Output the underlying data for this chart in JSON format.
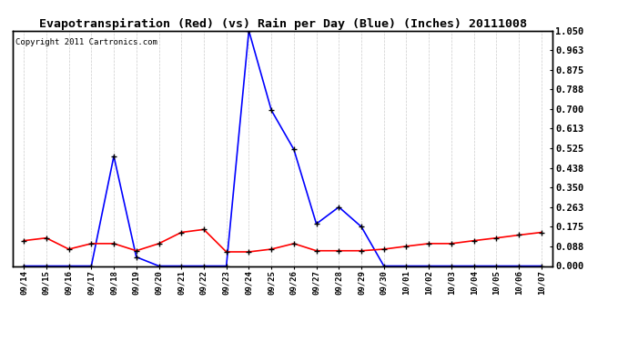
{
  "title": "Evapotranspiration (Red) (vs) Rain per Day (Blue) (Inches) 20111008",
  "copyright": "Copyright 2011 Cartronics.com",
  "dates": [
    "09/14",
    "09/15",
    "09/16",
    "09/17",
    "09/18",
    "09/19",
    "09/20",
    "09/21",
    "09/22",
    "09/23",
    "09/24",
    "09/25",
    "09/26",
    "09/27",
    "09/28",
    "09/29",
    "09/30",
    "10/01",
    "10/02",
    "10/03",
    "10/04",
    "10/05",
    "10/06",
    "10/07"
  ],
  "blue_rain": [
    0.0,
    0.0,
    0.0,
    0.0,
    0.49,
    0.04,
    0.0,
    0.0,
    0.0,
    0.0,
    1.05,
    0.695,
    0.52,
    0.188,
    0.263,
    0.175,
    0.0,
    0.0,
    0.0,
    0.0,
    0.0,
    0.0,
    0.0,
    0.0
  ],
  "red_et": [
    0.113,
    0.125,
    0.075,
    0.1,
    0.1,
    0.068,
    0.1,
    0.15,
    0.163,
    0.063,
    0.063,
    0.075,
    0.1,
    0.068,
    0.068,
    0.068,
    0.075,
    0.088,
    0.1,
    0.1,
    0.113,
    0.125,
    0.138,
    0.15
  ],
  "ylim": [
    0.0,
    1.05
  ],
  "yticks": [
    0.0,
    0.088,
    0.175,
    0.263,
    0.35,
    0.438,
    0.525,
    0.613,
    0.7,
    0.788,
    0.875,
    0.963,
    1.05
  ],
  "bg_color": "#ffffff",
  "grid_color": "#cccccc",
  "title_fontsize": 9.5,
  "copyright_fontsize": 6.5,
  "tick_fontsize": 6.5,
  "ytick_fontsize": 7.5,
  "blue_color": "#0000ff",
  "red_color": "#ff0000",
  "marker": "+"
}
